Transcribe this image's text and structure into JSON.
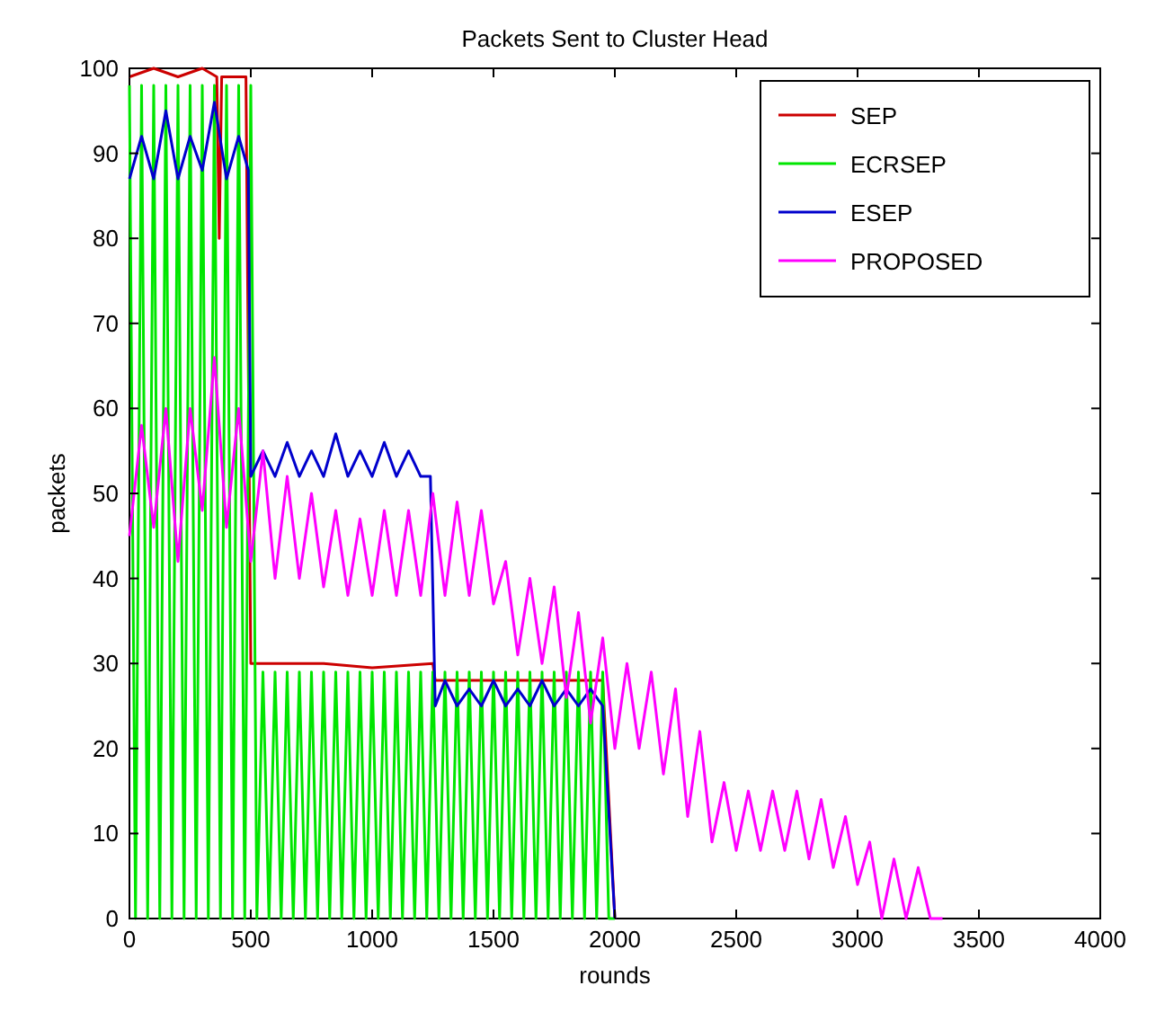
{
  "chart_data": {
    "type": "line",
    "title": "Packets Sent to Cluster Head",
    "xlabel": "rounds",
    "ylabel": "packets",
    "xlim": [
      0,
      4000
    ],
    "xticks": [
      0,
      500,
      1000,
      1500,
      2000,
      2500,
      3000,
      3500,
      4000
    ],
    "ylim": [
      0,
      100
    ],
    "yticks": [
      0,
      10,
      20,
      30,
      40,
      50,
      60,
      70,
      80,
      90,
      100
    ],
    "grid": false,
    "legend": "top right",
    "series": [
      {
        "name": "SEP",
        "color": "#cc0000",
        "x": [
          0,
          100,
          200,
          300,
          360,
          370,
          380,
          480,
          500,
          800,
          1000,
          1250,
          1260,
          1950,
          2000
        ],
        "values": [
          99,
          100,
          99,
          100,
          99,
          80,
          99,
          99,
          30,
          30,
          29.5,
          30,
          28,
          28,
          0
        ]
      },
      {
        "name": "ECRSEP",
        "color": "#00e600",
        "x": [
          0,
          25,
          50,
          75,
          100,
          125,
          150,
          175,
          200,
          225,
          250,
          275,
          300,
          325,
          350,
          375,
          400,
          425,
          450,
          475,
          500,
          525,
          550,
          575,
          600,
          625,
          650,
          675,
          700,
          725,
          750,
          775,
          800,
          825,
          850,
          875,
          900,
          925,
          950,
          975,
          1000,
          1025,
          1050,
          1075,
          1100,
          1125,
          1150,
          1175,
          1200,
          1225,
          1250,
          1275,
          1300,
          1325,
          1350,
          1375,
          1400,
          1425,
          1450,
          1475,
          1500,
          1525,
          1550,
          1575,
          1600,
          1625,
          1650,
          1675,
          1700,
          1725,
          1750,
          1775,
          1800,
          1825,
          1850,
          1875,
          1900,
          1925,
          1950,
          1975,
          2000
        ],
        "values": [
          98,
          0,
          98,
          0,
          98,
          0,
          98,
          0,
          98,
          0,
          98,
          0,
          98,
          0,
          98,
          0,
          98,
          0,
          98,
          0,
          98,
          0,
          29,
          0,
          29,
          0,
          29,
          0,
          29,
          0,
          29,
          0,
          29,
          0,
          29,
          0,
          29,
          0,
          29,
          0,
          29,
          0,
          29,
          0,
          29,
          0,
          29,
          0,
          29,
          0,
          29,
          0,
          29,
          0,
          29,
          0,
          29,
          0,
          29,
          0,
          29,
          0,
          29,
          0,
          29,
          0,
          29,
          0,
          29,
          0,
          29,
          0,
          29,
          0,
          29,
          0,
          29,
          0,
          29,
          0,
          0
        ]
      },
      {
        "name": "ESEP",
        "color": "#0000cc",
        "x": [
          0,
          50,
          100,
          150,
          200,
          250,
          300,
          350,
          400,
          450,
          490,
          500,
          550,
          600,
          650,
          700,
          750,
          800,
          850,
          900,
          950,
          1000,
          1050,
          1100,
          1150,
          1200,
          1240,
          1260,
          1300,
          1350,
          1400,
          1450,
          1500,
          1550,
          1600,
          1650,
          1700,
          1750,
          1800,
          1850,
          1900,
          1950,
          2000
        ],
        "values": [
          87,
          92,
          87,
          95,
          87,
          92,
          88,
          96,
          87,
          92,
          88,
          52,
          55,
          52,
          56,
          52,
          55,
          52,
          57,
          52,
          55,
          52,
          56,
          52,
          55,
          52,
          52,
          25,
          28,
          25,
          27,
          25,
          28,
          25,
          27,
          25,
          28,
          25,
          27,
          25,
          27,
          25,
          0
        ]
      },
      {
        "name": "PROPOSED",
        "color": "#ff00ff",
        "x": [
          0,
          50,
          100,
          150,
          200,
          250,
          300,
          350,
          400,
          450,
          500,
          550,
          600,
          650,
          700,
          750,
          800,
          850,
          900,
          950,
          1000,
          1050,
          1100,
          1150,
          1200,
          1250,
          1300,
          1350,
          1400,
          1450,
          1500,
          1550,
          1600,
          1650,
          1700,
          1750,
          1800,
          1850,
          1900,
          1950,
          2000,
          2050,
          2100,
          2150,
          2200,
          2250,
          2300,
          2350,
          2400,
          2450,
          2500,
          2550,
          2600,
          2650,
          2700,
          2750,
          2800,
          2850,
          2900,
          2950,
          3000,
          3050,
          3100,
          3150,
          3200,
          3250,
          3300,
          3350
        ],
        "values": [
          45,
          58,
          46,
          60,
          42,
          60,
          48,
          66,
          46,
          60,
          42,
          55,
          40,
          52,
          40,
          50,
          39,
          48,
          38,
          47,
          38,
          48,
          38,
          48,
          38,
          50,
          38,
          49,
          38,
          48,
          37,
          42,
          31,
          40,
          30,
          39,
          26,
          36,
          23,
          33,
          20,
          30,
          20,
          29,
          17,
          27,
          12,
          22,
          9,
          16,
          8,
          15,
          8,
          15,
          8,
          15,
          7,
          14,
          6,
          12,
          4,
          9,
          0,
          7,
          0,
          6,
          0,
          0
        ]
      }
    ]
  }
}
